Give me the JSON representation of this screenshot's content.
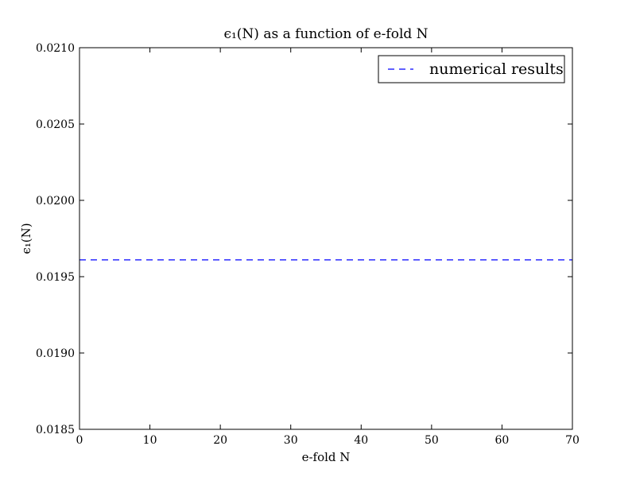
{
  "chart_data": {
    "type": "line",
    "title": "ϵ₁(N) as a function of e-fold N",
    "xlabel": "e-fold N",
    "ylabel": "ϵ₁(N)",
    "xlim": [
      0,
      70
    ],
    "ylim": [
      0.0185,
      0.021
    ],
    "x_ticks": [
      0,
      10,
      20,
      30,
      40,
      50,
      60,
      70
    ],
    "x_tick_labels": [
      "0",
      "10",
      "20",
      "30",
      "40",
      "50",
      "60",
      "70"
    ],
    "y_ticks": [
      0.0185,
      0.019,
      0.0195,
      0.02,
      0.0205,
      0.021
    ],
    "y_tick_labels": [
      "0.0185",
      "0.0190",
      "0.0195",
      "0.0200",
      "0.0205",
      "0.0210"
    ],
    "grid": false,
    "legend_position": "top-right",
    "series": [
      {
        "name": "numerical results",
        "style": "dashed",
        "color": "#0000ff",
        "x": [
          0,
          70
        ],
        "y": [
          0.01961,
          0.01961
        ]
      }
    ]
  }
}
